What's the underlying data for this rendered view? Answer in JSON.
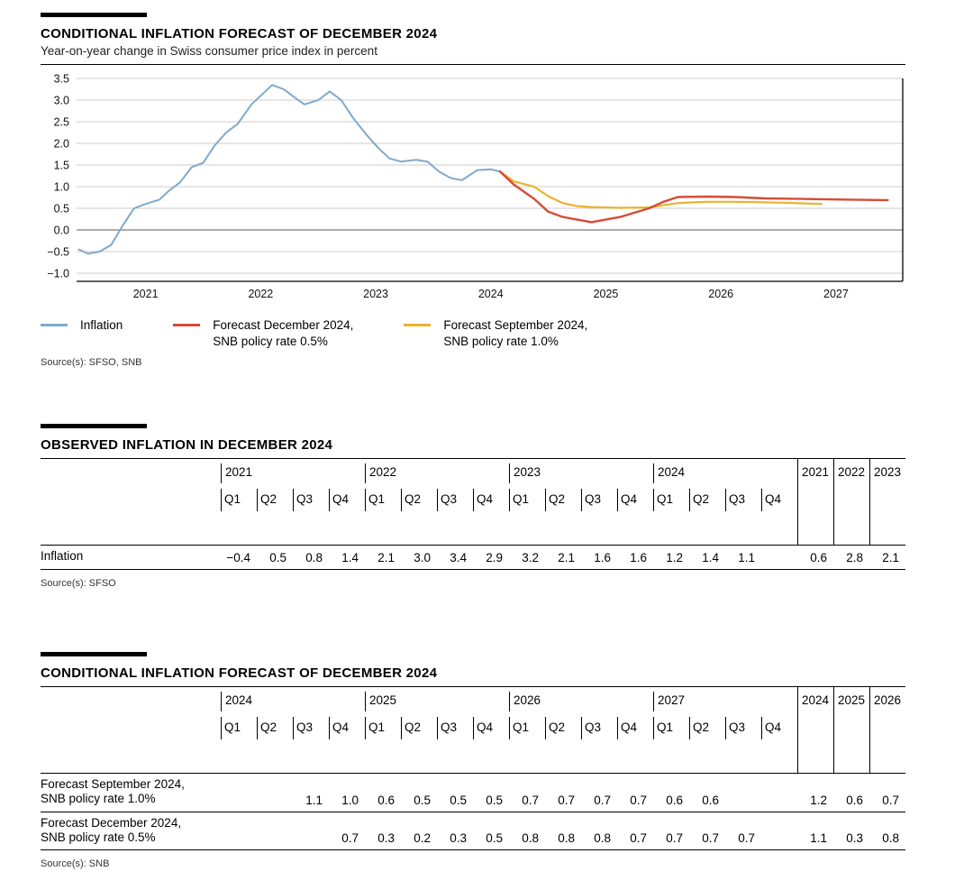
{
  "chart_section": {
    "title": "CONDITIONAL INFLATION FORECAST OF DECEMBER 2024",
    "subtitle": "Year-on-year change in Swiss consumer price index in percent",
    "source": "Source(s): SFSO, SNB",
    "legend": [
      {
        "lines": [
          "Inflation"
        ],
        "color": "#7fa9cc"
      },
      {
        "lines": [
          "Forecast December 2024,",
          "SNB policy rate 0.5%"
        ],
        "color": "#d84b35"
      },
      {
        "lines": [
          "Forecast September 2024,",
          "SNB policy rate 1.0%"
        ],
        "color": "#e9b330"
      }
    ]
  },
  "chart_data": {
    "type": "line",
    "title": "CONDITIONAL INFLATION FORECAST OF DECEMBER 2024",
    "subtitle": "Year-on-year change in Swiss consumer price index in percent",
    "xlabel": "",
    "ylabel": "Year-on-year change in Swiss consumer price index in percent",
    "x_range": [
      2020.9,
      2028.08
    ],
    "ylim": [
      -1.0,
      3.5
    ],
    "y_ticks": [
      3.5,
      3.0,
      2.5,
      2.0,
      1.5,
      1.0,
      0.5,
      0.0,
      -0.5,
      -1.0
    ],
    "x_tick_years": [
      2021,
      2022,
      2023,
      2024,
      2025,
      2026,
      2027
    ],
    "grid": "horizontal gray gridlines, darker zero line, black frame bottom and right",
    "legend_position": "below",
    "series": [
      {
        "name": "Inflation",
        "slug": "inflation",
        "color": "#7fa9cc",
        "width": 2,
        "points": [
          [
            2020.92,
            -0.45
          ],
          [
            2021.0,
            -0.55
          ],
          [
            2021.1,
            -0.5
          ],
          [
            2021.2,
            -0.35
          ],
          [
            2021.3,
            0.1
          ],
          [
            2021.4,
            0.5
          ],
          [
            2021.5,
            0.6
          ],
          [
            2021.62,
            0.7
          ],
          [
            2021.7,
            0.9
          ],
          [
            2021.8,
            1.1
          ],
          [
            2021.9,
            1.45
          ],
          [
            2022.0,
            1.55
          ],
          [
            2022.1,
            1.95
          ],
          [
            2022.2,
            2.25
          ],
          [
            2022.3,
            2.45
          ],
          [
            2022.42,
            2.9
          ],
          [
            2022.5,
            3.1
          ],
          [
            2022.6,
            3.35
          ],
          [
            2022.7,
            3.25
          ],
          [
            2022.8,
            3.05
          ],
          [
            2022.88,
            2.9
          ],
          [
            2023.0,
            3.0
          ],
          [
            2023.1,
            3.2
          ],
          [
            2023.2,
            3.0
          ],
          [
            2023.3,
            2.6
          ],
          [
            2023.42,
            2.2
          ],
          [
            2023.52,
            1.9
          ],
          [
            2023.62,
            1.65
          ],
          [
            2023.72,
            1.58
          ],
          [
            2023.85,
            1.62
          ],
          [
            2023.95,
            1.58
          ],
          [
            2024.05,
            1.35
          ],
          [
            2024.15,
            1.2
          ],
          [
            2024.25,
            1.15
          ],
          [
            2024.38,
            1.38
          ],
          [
            2024.5,
            1.4
          ],
          [
            2024.58,
            1.35
          ]
        ]
      },
      {
        "name": "Forecast September 2024, SNB policy rate 1.0%",
        "slug": "forecast-september-2024",
        "color": "#e9b330",
        "width": 2.2,
        "points": [
          [
            2024.58,
            1.35
          ],
          [
            2024.7,
            1.12
          ],
          [
            2024.875,
            1.0
          ],
          [
            2025.0,
            0.78
          ],
          [
            2025.125,
            0.62
          ],
          [
            2025.25,
            0.55
          ],
          [
            2025.375,
            0.53
          ],
          [
            2025.625,
            0.51
          ],
          [
            2025.875,
            0.52
          ],
          [
            2026.125,
            0.62
          ],
          [
            2026.375,
            0.65
          ],
          [
            2026.625,
            0.65
          ],
          [
            2026.875,
            0.64
          ],
          [
            2027.125,
            0.62
          ],
          [
            2027.375,
            0.6
          ]
        ]
      },
      {
        "name": "Forecast December 2024, SNB policy rate 0.5%",
        "slug": "forecast-december-2024",
        "color": "#d84b35",
        "width": 2.4,
        "points": [
          [
            2024.58,
            1.35
          ],
          [
            2024.7,
            1.05
          ],
          [
            2024.875,
            0.72
          ],
          [
            2025.0,
            0.42
          ],
          [
            2025.125,
            0.3
          ],
          [
            2025.375,
            0.18
          ],
          [
            2025.625,
            0.3
          ],
          [
            2025.875,
            0.5
          ],
          [
            2026.0,
            0.65
          ],
          [
            2026.125,
            0.76
          ],
          [
            2026.375,
            0.77
          ],
          [
            2026.625,
            0.76
          ],
          [
            2026.875,
            0.73
          ],
          [
            2027.125,
            0.72
          ],
          [
            2027.375,
            0.71
          ],
          [
            2027.625,
            0.7
          ],
          [
            2027.95,
            0.69
          ]
        ]
      }
    ]
  },
  "observed_table": {
    "title": "OBSERVED INFLATION IN DECEMBER 2024",
    "year_groups": [
      "2021",
      "2022",
      "2023",
      "2024"
    ],
    "quarter_labels": [
      "Q1",
      "Q2",
      "Q3",
      "Q4"
    ],
    "annual_columns": [
      "2021",
      "2022",
      "2023"
    ],
    "rows": [
      {
        "label_lines": [
          "Inflation"
        ],
        "quarterly": [
          "−0.4",
          "0.5",
          "0.8",
          "1.4",
          "2.1",
          "3.0",
          "3.4",
          "2.9",
          "3.2",
          "2.1",
          "1.6",
          "1.6",
          "1.2",
          "1.4",
          "1.1",
          ""
        ],
        "annual": [
          "0.6",
          "2.8",
          "2.1"
        ]
      }
    ],
    "source": "Source(s): SFSO"
  },
  "forecast_table": {
    "title": "CONDITIONAL INFLATION FORECAST OF DECEMBER 2024",
    "year_groups": [
      "2024",
      "2025",
      "2026",
      "2027"
    ],
    "quarter_labels": [
      "Q1",
      "Q2",
      "Q3",
      "Q4"
    ],
    "annual_columns": [
      "2024",
      "2025",
      "2026"
    ],
    "rows": [
      {
        "label_lines": [
          "Forecast September 2024,",
          "SNB policy rate 1.0%"
        ],
        "quarterly": [
          "",
          "",
          "1.1",
          "1.0",
          "0.6",
          "0.5",
          "0.5",
          "0.5",
          "0.7",
          "0.7",
          "0.7",
          "0.7",
          "0.6",
          "0.6",
          "",
          ""
        ],
        "annual": [
          "1.2",
          "0.6",
          "0.7"
        ]
      },
      {
        "label_lines": [
          "Forecast December 2024,",
          "SNB policy rate 0.5%"
        ],
        "quarterly": [
          "",
          "",
          "",
          "0.7",
          "0.3",
          "0.2",
          "0.3",
          "0.5",
          "0.8",
          "0.8",
          "0.8",
          "0.7",
          "0.7",
          "0.7",
          "0.7",
          ""
        ],
        "annual": [
          "1.1",
          "0.3",
          "0.8"
        ]
      }
    ],
    "source": "Source(s): SNB"
  }
}
